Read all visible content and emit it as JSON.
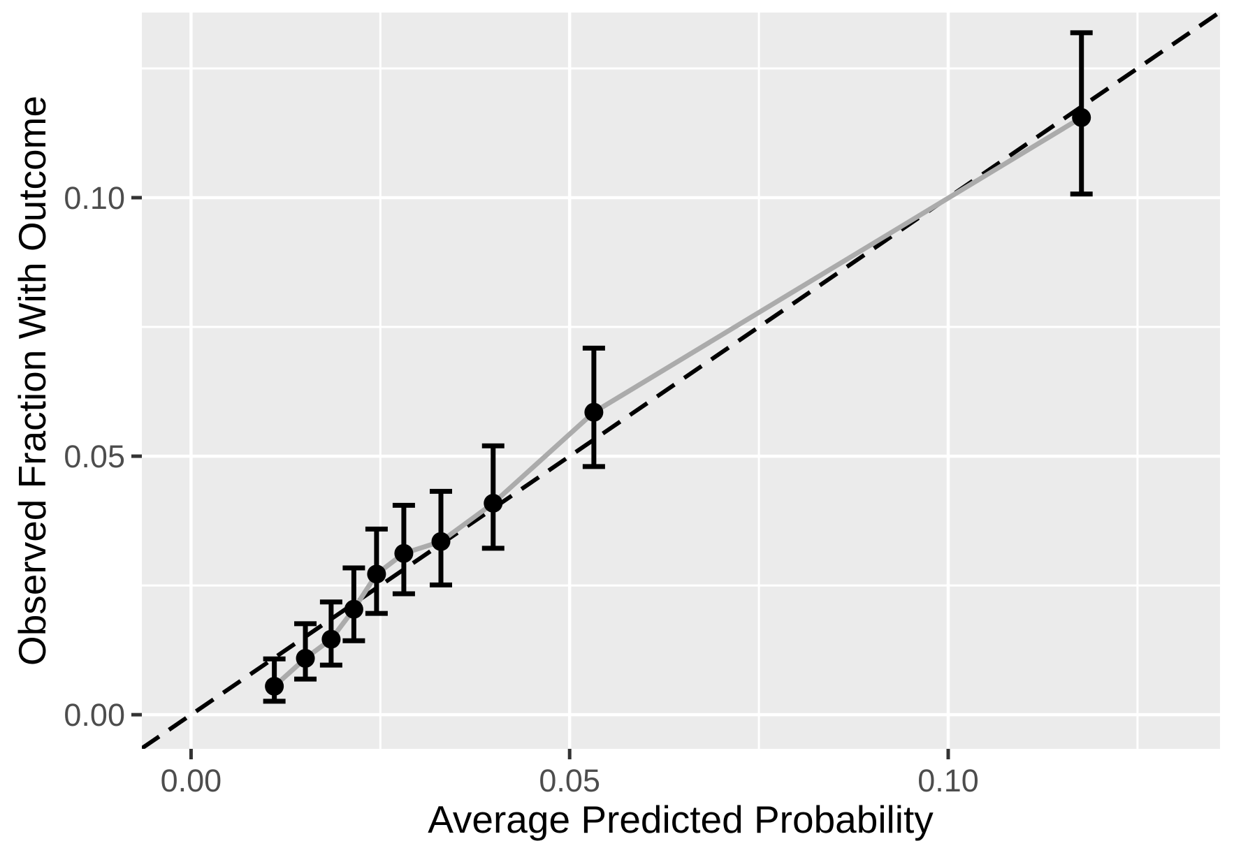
{
  "chart_data": {
    "type": "scatter",
    "subtype": "calibration-plot",
    "title": "",
    "xlabel": "Average Predicted Probability",
    "ylabel": "Observed Fraction With Outcome",
    "xlim": [
      -0.0065,
      0.1359
    ],
    "ylim": [
      -0.0066,
      0.1358
    ],
    "x_ticks": {
      "values": [
        0,
        0.05,
        0.1
      ],
      "labels": [
        "0.00",
        "0.05",
        "0.10"
      ]
    },
    "y_ticks": {
      "values": [
        0,
        0.05,
        0.1
      ],
      "labels": [
        "0.00",
        "0.05",
        "0.10"
      ]
    },
    "x_minor_gridlines": [
      0.025,
      0.075,
      0.125
    ],
    "y_minor_gridlines": [
      0.025,
      0.075,
      0.125
    ],
    "grid": "major-and-minor",
    "legend_position": "none",
    "reference_line": {
      "type": "identity",
      "equation": "y = x",
      "style": "dashed",
      "color": "#000000"
    },
    "series": [
      {
        "name": "calibration-deciles",
        "representation": "points-with-error-bars-connected-by-line",
        "point_color": "#000000",
        "line_color": "#ABABAB",
        "points": [
          {
            "x": 0.011,
            "y": 0.0055,
            "ci_low": 0.0026,
            "ci_high": 0.0108
          },
          {
            "x": 0.0151,
            "y": 0.0109,
            "ci_low": 0.0069,
            "ci_high": 0.0176
          },
          {
            "x": 0.0185,
            "y": 0.0146,
            "ci_low": 0.0096,
            "ci_high": 0.0218
          },
          {
            "x": 0.0215,
            "y": 0.0204,
            "ci_low": 0.0143,
            "ci_high": 0.0284
          },
          {
            "x": 0.0245,
            "y": 0.0272,
            "ci_low": 0.0196,
            "ci_high": 0.0359
          },
          {
            "x": 0.0281,
            "y": 0.0312,
            "ci_low": 0.0234,
            "ci_high": 0.0405
          },
          {
            "x": 0.033,
            "y": 0.0335,
            "ci_low": 0.0251,
            "ci_high": 0.0432
          },
          {
            "x": 0.0399,
            "y": 0.0409,
            "ci_low": 0.0322,
            "ci_high": 0.052
          },
          {
            "x": 0.0532,
            "y": 0.0585,
            "ci_low": 0.048,
            "ci_high": 0.0709
          },
          {
            "x": 0.1176,
            "y": 0.1155,
            "ci_low": 0.1007,
            "ci_high": 0.1319
          }
        ]
      }
    ],
    "style": {
      "panel_background": "#EBEBEB",
      "grid_color": "#FFFFFF",
      "axis_text_color": "#4D4D4D",
      "axis_title_color": "#000000",
      "tick_mark_color": "#333333",
      "point_color": "#000000",
      "curve_color": "#ABABAB",
      "reference_line_color": "#000000"
    }
  }
}
